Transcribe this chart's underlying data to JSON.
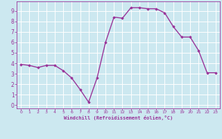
{
  "x": [
    0,
    1,
    2,
    3,
    4,
    5,
    6,
    7,
    8,
    9,
    10,
    11,
    12,
    13,
    14,
    15,
    16,
    17,
    18,
    19,
    20,
    21,
    22,
    23
  ],
  "y": [
    3.9,
    3.8,
    3.6,
    3.8,
    3.8,
    3.3,
    2.6,
    1.5,
    0.3,
    2.6,
    6.0,
    8.4,
    8.3,
    9.3,
    9.3,
    9.2,
    9.2,
    8.8,
    7.5,
    6.5,
    6.5,
    5.2,
    3.1,
    3.1
  ],
  "line_color": "#993399",
  "marker": "D",
  "marker_size": 1.8,
  "bg_color": "#cce8f0",
  "grid_color": "#ffffff",
  "xlabel": "Windchill (Refroidissement éolien,°C)",
  "xlabel_color": "#993399",
  "tick_color": "#993399",
  "xlim": [
    -0.5,
    23.5
  ],
  "ylim": [
    -0.3,
    9.9
  ],
  "xticks": [
    0,
    1,
    2,
    3,
    4,
    5,
    6,
    7,
    8,
    9,
    10,
    11,
    12,
    13,
    14,
    15,
    16,
    17,
    18,
    19,
    20,
    21,
    22,
    23
  ],
  "yticks": [
    0,
    1,
    2,
    3,
    4,
    5,
    6,
    7,
    8,
    9
  ],
  "line_width": 1.0
}
